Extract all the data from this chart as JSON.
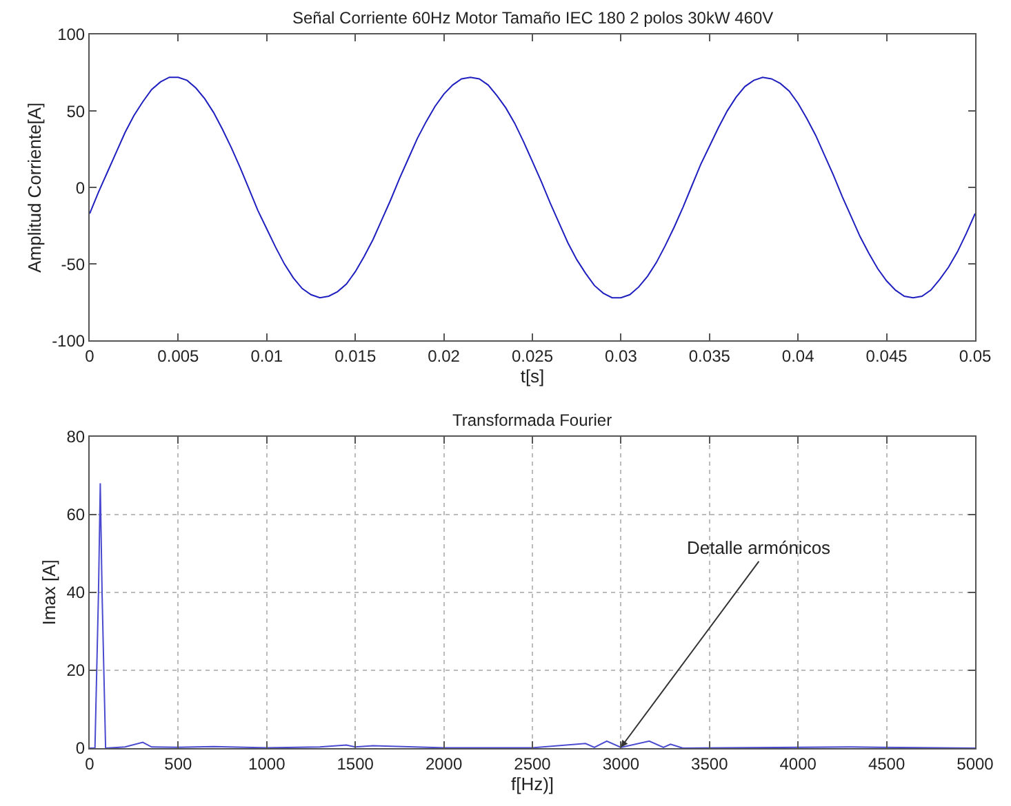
{
  "chart_data": [
    {
      "type": "line",
      "title": "Señal Corriente 60Hz Motor Tamaño IEC 180 2 polos 30kW 460V",
      "xlabel": "t[s]",
      "ylabel": "Amplitud Corriente[A]",
      "x": [
        0,
        0.0005,
        0.001,
        0.0015,
        0.002,
        0.0025,
        0.003,
        0.0035,
        0.004,
        0.0045,
        0.005,
        0.0055,
        0.006,
        0.0065,
        0.007,
        0.0075,
        0.008,
        0.0085,
        0.009,
        0.0095,
        0.01,
        0.0105,
        0.011,
        0.0115,
        0.012,
        0.0125,
        0.013,
        0.0135,
        0.014,
        0.0145,
        0.015,
        0.0155,
        0.016,
        0.0165,
        0.017,
        0.0175,
        0.018,
        0.0185,
        0.019,
        0.0195,
        0.02,
        0.0205,
        0.021,
        0.0215,
        0.022,
        0.0225,
        0.023,
        0.0235,
        0.024,
        0.0245,
        0.025,
        0.0255,
        0.026,
        0.0265,
        0.027,
        0.0275,
        0.028,
        0.0285,
        0.029,
        0.0295,
        0.03,
        0.0305,
        0.031,
        0.0315,
        0.032,
        0.0325,
        0.033,
        0.0335,
        0.034,
        0.0345,
        0.035,
        0.0355,
        0.036,
        0.0365,
        0.037,
        0.0375,
        0.038,
        0.0385,
        0.039,
        0.0395,
        0.04,
        0.0405,
        0.041,
        0.0415,
        0.042,
        0.0425,
        0.043,
        0.0435,
        0.044,
        0.0445,
        0.045,
        0.0455,
        0.046,
        0.0465,
        0.047,
        0.0475,
        0.048,
        0.0485,
        0.049,
        0.0495,
        0.05
      ],
      "series": [
        {
          "color": "#1f1fc0",
          "values": [
            -17,
            -3,
            10,
            23,
            36,
            47,
            56,
            64,
            69,
            72,
            72,
            70,
            65,
            58,
            49,
            38,
            26,
            13,
            -1,
            -15,
            -27,
            -39,
            -50,
            -59,
            -66,
            -70,
            -72,
            -71,
            -68,
            -63,
            -55,
            -45,
            -34,
            -21,
            -8,
            6,
            19,
            32,
            43,
            53,
            61,
            67,
            71,
            72,
            71,
            67,
            60,
            52,
            42,
            30,
            17,
            4,
            -10,
            -23,
            -36,
            -47,
            -56,
            -64,
            -69,
            -72,
            -72,
            -70,
            -65,
            -58,
            -49,
            -38,
            -26,
            -13,
            1,
            15,
            27,
            39,
            50,
            59,
            66,
            70,
            72,
            71,
            68,
            63,
            55,
            45,
            34,
            21,
            8,
            -6,
            -19,
            -32,
            -43,
            -53,
            -61,
            -67,
            -71,
            -72,
            -71,
            -67,
            -60,
            -52,
            -42,
            -30,
            -17
          ]
        }
      ],
      "xlim": [
        0,
        0.05
      ],
      "xticks": [
        0,
        0.005,
        0.01,
        0.015,
        0.02,
        0.025,
        0.03,
        0.035,
        0.04,
        0.045,
        0.05
      ],
      "ylim": [
        -100,
        100
      ],
      "yticks": [
        -100,
        -50,
        0,
        50,
        100
      ],
      "grid": false
    },
    {
      "type": "line",
      "title": "Transformada Fourier",
      "xlabel": "f[Hz)]",
      "ylabel": "Imax [A]",
      "x": [
        0,
        30,
        50,
        60,
        70,
        90,
        200,
        300,
        350,
        500,
        700,
        1000,
        1300,
        1450,
        1500,
        1600,
        2000,
        2500,
        2800,
        2850,
        2920,
        3000,
        3160,
        3240,
        3280,
        3350,
        4300,
        5000
      ],
      "series": [
        {
          "color": "#4a4ad0",
          "values": [
            0,
            0,
            40,
            68,
            40,
            0,
            0.3,
            1.5,
            0.3,
            0.2,
            0.4,
            0.1,
            0.3,
            0.8,
            0.3,
            0.6,
            0.1,
            0.1,
            1.2,
            0.2,
            1.8,
            0.2,
            1.8,
            0.2,
            1.0,
            0,
            0.3,
            0
          ]
        }
      ],
      "xlim": [
        0,
        5000
      ],
      "xticks": [
        0,
        500,
        1000,
        1500,
        2000,
        2500,
        3000,
        3500,
        4000,
        4500,
        5000
      ],
      "ylim": [
        0,
        80
      ],
      "yticks": [
        0,
        20,
        40,
        60,
        80
      ],
      "grid": true,
      "annotations": [
        {
          "text": "Detalle armónicos",
          "x": 3000,
          "y": 0.2
        }
      ]
    }
  ]
}
